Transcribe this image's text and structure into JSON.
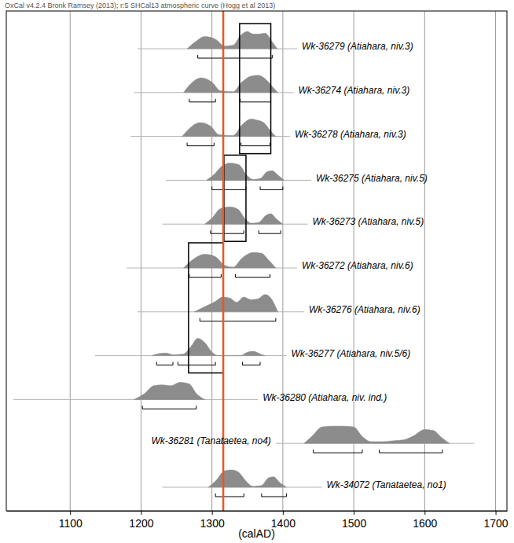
{
  "chart_data": {
    "type": "calibration",
    "title": "OxCal v4.2.4 Bronk Ramsey (2013); r:5 SHCal13 atmospheric curve (Hogg et al 2013)",
    "x_label": "(calAD)",
    "xlim": [
      1010,
      1716
    ],
    "xticks": [
      1100,
      1200,
      1300,
      1400,
      1500,
      1600,
      1700
    ],
    "grid": true,
    "color": "#8c8c8c",
    "reference_line": {
      "value": 1316,
      "color": "#e8562a"
    },
    "boxes": [
      {
        "x": [
          1339,
          1383
        ],
        "rows": [
          0,
          2
        ]
      },
      {
        "x": [
          1317,
          1348
        ],
        "rows": [
          3,
          4
        ]
      },
      {
        "x": [
          1267,
          1316
        ],
        "rows": [
          5,
          7
        ]
      }
    ],
    "samples": [
      {
        "name": "Wk-36279 (Atiahara, niv.3)",
        "range": [
          1195,
          1420
        ],
        "density_x": [
          1265,
          1275,
          1290,
          1305,
          1318,
          1330,
          1340,
          1350,
          1358,
          1366,
          1375,
          1385,
          1392
        ],
        "density_y": [
          0,
          0.35,
          0.7,
          0.55,
          0.15,
          0.2,
          0.75,
          1,
          0.85,
          0.85,
          0.9,
          0.4,
          0
        ],
        "brackets": [
          [
            1280,
            1385
          ]
        ]
      },
      {
        "name": "Wk-36274 (Atiahara, niv.3)",
        "range": [
          1190,
          1415
        ],
        "density_x": [
          1260,
          1270,
          1285,
          1300,
          1312,
          1330,
          1342,
          1355,
          1365,
          1375,
          1385,
          1393
        ],
        "density_y": [
          0,
          0.5,
          0.85,
          0.6,
          0.1,
          0.05,
          0.6,
          0.95,
          1,
          0.8,
          0.35,
          0
        ],
        "brackets": [
          [
            1268,
            1305
          ],
          [
            1340,
            1383
          ]
        ]
      },
      {
        "name": "Wk-36278 (Atiahara, niv.3)",
        "range": [
          1185,
          1410
        ],
        "density_x": [
          1258,
          1268,
          1283,
          1298,
          1310,
          1330,
          1342,
          1355,
          1363,
          1373,
          1383,
          1390
        ],
        "density_y": [
          0,
          0.45,
          0.8,
          0.6,
          0.1,
          0.05,
          0.65,
          1,
          0.95,
          0.8,
          0.3,
          0
        ],
        "brackets": [
          [
            1265,
            1303
          ],
          [
            1341,
            1382
          ]
        ]
      },
      {
        "name": "Wk-36275 (Atiahara, niv.5)",
        "range": [
          1235,
          1440
        ],
        "density_x": [
          1292,
          1302,
          1315,
          1325,
          1338,
          1348,
          1358,
          1368,
          1378,
          1385,
          1393,
          1402
        ],
        "density_y": [
          0,
          0.3,
          0.85,
          1,
          0.9,
          0.35,
          0.05,
          0.1,
          0.5,
          0.55,
          0.3,
          0
        ],
        "brackets": [
          [
            1300,
            1348
          ],
          [
            1368,
            1400
          ]
        ]
      },
      {
        "name": "Wk-36273 (Atiahara, niv.5)",
        "range": [
          1230,
          1435
        ],
        "density_x": [
          1290,
          1300,
          1312,
          1325,
          1337,
          1346,
          1356,
          1366,
          1376,
          1383,
          1391,
          1400
        ],
        "density_y": [
          0,
          0.35,
          0.9,
          1,
          0.85,
          0.35,
          0.05,
          0.1,
          0.5,
          0.6,
          0.3,
          0
        ],
        "brackets": [
          [
            1298,
            1345
          ],
          [
            1366,
            1397
          ]
        ]
      },
      {
        "name": "Wk-36272 (Atiahara, niv.6)",
        "range": [
          1180,
          1420
        ],
        "density_x": [
          1260,
          1272,
          1290,
          1305,
          1318,
          1330,
          1342,
          1358,
          1370,
          1380,
          1390
        ],
        "density_y": [
          0,
          0.45,
          0.8,
          0.65,
          0.15,
          0.05,
          0.55,
          0.9,
          0.85,
          0.45,
          0
        ],
        "brackets": [
          [
            1268,
            1313
          ],
          [
            1333,
            1382
          ]
        ]
      },
      {
        "name": "Wk-36276 (Atiahara, niv.6)",
        "range": [
          1195,
          1430
        ],
        "density_x": [
          1275,
          1290,
          1305,
          1315,
          1325,
          1335,
          1345,
          1355,
          1365,
          1375,
          1383,
          1393
        ],
        "density_y": [
          0,
          0.3,
          0.6,
          0.85,
          0.8,
          0.55,
          0.85,
          0.7,
          0.75,
          1,
          0.8,
          0
        ],
        "brackets": [
          [
            1283,
            1390
          ]
        ]
      },
      {
        "name": "Wk-36277 (Atiahara, niv.5/6)",
        "range": [
          1135,
          1405
        ],
        "density_x": [
          1215,
          1225,
          1235,
          1245,
          1260,
          1270,
          1280,
          1290,
          1300,
          1310,
          1340,
          1350,
          1358,
          1368,
          1375
        ],
        "density_y": [
          0,
          0.12,
          0.15,
          0.05,
          0.1,
          0.5,
          1,
          0.75,
          0.2,
          0,
          0,
          0.2,
          0.25,
          0.1,
          0
        ],
        "brackets": [
          [
            1222,
            1245
          ],
          [
            1252,
            1305
          ],
          [
            1343,
            1368
          ]
        ]
      },
      {
        "name": "Wk-36280 (Atiahara, niv. ind.)",
        "range": [
          1020,
          1365
        ],
        "density_x": [
          1190,
          1205,
          1218,
          1230,
          1242,
          1255,
          1268,
          1278,
          1290
        ],
        "density_y": [
          0,
          0.35,
          0.8,
          0.85,
          0.8,
          1,
          0.9,
          0.35,
          0
        ],
        "brackets": [
          [
            1202,
            1278
          ]
        ]
      },
      {
        "name": "Wk-36281 (Tanataetea, no4)",
        "range": [
          1390,
          1670
        ],
        "density_x": [
          1430,
          1442,
          1455,
          1470,
          1485,
          1500,
          1512,
          1525,
          1540,
          1555,
          1570,
          1585,
          1600,
          1612,
          1625,
          1635
        ],
        "density_y": [
          0,
          0.45,
          0.95,
          1,
          1,
          0.95,
          0.4,
          0.1,
          0.1,
          0.15,
          0.2,
          0.45,
          0.8,
          0.75,
          0.3,
          0
        ],
        "brackets": [
          [
            1443,
            1512
          ],
          [
            1536,
            1625
          ]
        ]
      },
      {
        "name": "Wk-34072 (Tanataetea, no1)",
        "range": [
          1230,
          1455
        ],
        "density_x": [
          1295,
          1305,
          1318,
          1328,
          1338,
          1348,
          1358,
          1370,
          1380,
          1387,
          1395,
          1405
        ],
        "density_y": [
          0,
          0.35,
          0.95,
          1,
          0.85,
          0.35,
          0.05,
          0.1,
          0.55,
          0.6,
          0.3,
          0
        ],
        "brackets": [
          [
            1305,
            1345
          ],
          [
            1370,
            1405
          ]
        ]
      }
    ]
  }
}
